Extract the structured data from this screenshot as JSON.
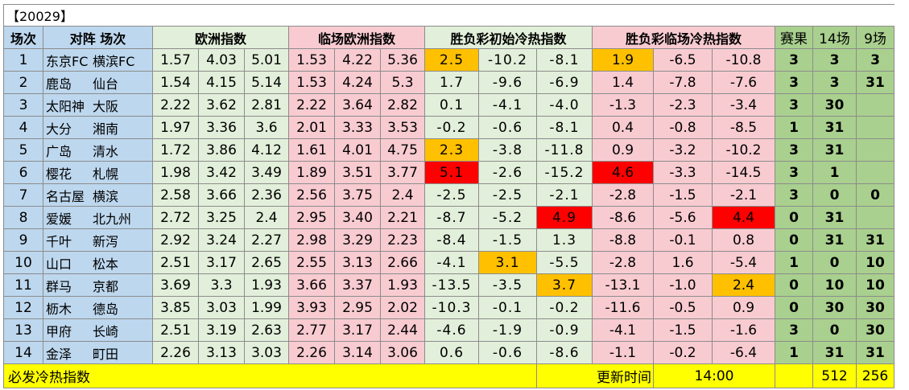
{
  "title": "【20029】",
  "headers": {
    "round": "场次",
    "match": "对阵 场次",
    "euro": "欧洲指数",
    "live_euro": "临场欧洲指数",
    "initial_heat": "胜负彩初始冷热指数",
    "live_heat": "胜负彩临场冷热指数",
    "result": "赛果",
    "g14": "14场",
    "g9": "9场"
  },
  "rows": [
    {
      "n": "1",
      "home": "东京FC",
      "away": "横滨FC",
      "euro": [
        "1.57",
        "4.03",
        "5.01"
      ],
      "live": [
        "1.53",
        "4.22",
        "5.36"
      ],
      "init": [
        "2.5",
        "-10.2",
        "-8.1"
      ],
      "heat": [
        "1.9",
        "-6.5",
        "-10.8"
      ],
      "result": "3",
      "g14": "3",
      "g9": "3"
    },
    {
      "n": "2",
      "home": "鹿岛",
      "away": "仙台",
      "euro": [
        "1.54",
        "4.15",
        "5.14"
      ],
      "live": [
        "1.53",
        "4.24",
        "5.3"
      ],
      "init": [
        "1.7",
        "-9.6",
        "-6.9"
      ],
      "heat": [
        "1.4",
        "-7.8",
        "-7.6"
      ],
      "result": "3",
      "g14": "3",
      "g9": "31"
    },
    {
      "n": "3",
      "home": "太阳神",
      "away": "大阪",
      "euro": [
        "2.22",
        "3.62",
        "2.81"
      ],
      "live": [
        "2.22",
        "3.64",
        "2.82"
      ],
      "init": [
        "0.1",
        "-4.1",
        "-4.0"
      ],
      "heat": [
        "-1.3",
        "-2.3",
        "-3.4"
      ],
      "result": "3",
      "g14": "30",
      "g9": ""
    },
    {
      "n": "4",
      "home": "大分",
      "away": "湘南",
      "euro": [
        "1.97",
        "3.36",
        "3.6"
      ],
      "live": [
        "2.01",
        "3.33",
        "3.53"
      ],
      "init": [
        "-0.2",
        "-0.6",
        "-8.1"
      ],
      "heat": [
        "0.4",
        "-0.8",
        "-8.5"
      ],
      "result": "1",
      "g14": "31",
      "g9": ""
    },
    {
      "n": "5",
      "home": "广岛",
      "away": "清水",
      "euro": [
        "1.72",
        "3.86",
        "4.12"
      ],
      "live": [
        "1.61",
        "4.01",
        "4.75"
      ],
      "init": [
        "2.3",
        "-3.8",
        "-11.8"
      ],
      "heat": [
        "0.9",
        "-3.2",
        "-10.2"
      ],
      "result": "3",
      "g14": "31",
      "g9": ""
    },
    {
      "n": "6",
      "home": "樱花",
      "away": "札幌",
      "euro": [
        "1.98",
        "3.42",
        "3.49"
      ],
      "live": [
        "1.89",
        "3.51",
        "3.77"
      ],
      "init": [
        "5.1",
        "-2.6",
        "-15.2"
      ],
      "heat": [
        "4.6",
        "-3.3",
        "-14.5"
      ],
      "result": "3",
      "g14": "1",
      "g9": ""
    },
    {
      "n": "7",
      "home": "名古屋",
      "away": "横滨",
      "euro": [
        "2.58",
        "3.66",
        "2.36"
      ],
      "live": [
        "2.56",
        "3.75",
        "2.4"
      ],
      "init": [
        "-2.5",
        "-2.5",
        "-2.1"
      ],
      "heat": [
        "-2.8",
        "-1.5",
        "-2.1"
      ],
      "result": "3",
      "g14": "0",
      "g9": "0"
    },
    {
      "n": "8",
      "home": "爱媛",
      "away": "北九州",
      "euro": [
        "2.72",
        "3.25",
        "2.4"
      ],
      "live": [
        "2.95",
        "3.40",
        "2.21"
      ],
      "init": [
        "-8.7",
        "-5.2",
        "4.9"
      ],
      "heat": [
        "-8.6",
        "-5.6",
        "4.4"
      ],
      "result": "0",
      "g14": "31",
      "g9": ""
    },
    {
      "n": "9",
      "home": "千叶",
      "away": "新泻",
      "euro": [
        "2.92",
        "3.24",
        "2.27"
      ],
      "live": [
        "2.98",
        "3.29",
        "2.23"
      ],
      "init": [
        "-8.4",
        "-1.5",
        "1.3"
      ],
      "heat": [
        "-8.8",
        "-0.1",
        "0.8"
      ],
      "result": "0",
      "g14": "31",
      "g9": "31"
    },
    {
      "n": "10",
      "home": "山口",
      "away": "松本",
      "euro": [
        "2.51",
        "3.17",
        "2.65"
      ],
      "live": [
        "2.55",
        "3.13",
        "2.66"
      ],
      "init": [
        "-4.1",
        "3.1",
        "-5.5"
      ],
      "heat": [
        "-2.8",
        "1.6",
        "-5.4"
      ],
      "result": "1",
      "g14": "0",
      "g9": "10"
    },
    {
      "n": "11",
      "home": "群马",
      "away": "京都",
      "euro": [
        "3.69",
        "3.3",
        "1.93"
      ],
      "live": [
        "3.66",
        "3.37",
        "1.93"
      ],
      "init": [
        "-13.5",
        "-3.5",
        "3.7"
      ],
      "heat": [
        "-13.1",
        "-1.0",
        "2.4"
      ],
      "result": "0",
      "g14": "10",
      "g9": "10"
    },
    {
      "n": "12",
      "home": "枥木",
      "away": "德岛",
      "euro": [
        "3.85",
        "3.03",
        "1.99"
      ],
      "live": [
        "3.93",
        "2.95",
        "2.02"
      ],
      "init": [
        "-10.3",
        "-0.1",
        "-0.2"
      ],
      "heat": [
        "-11.6",
        "-0.5",
        "0.9"
      ],
      "result": "0",
      "g14": "30",
      "g9": "30"
    },
    {
      "n": "13",
      "home": "甲府",
      "away": "长崎",
      "euro": [
        "2.51",
        "3.19",
        "2.63"
      ],
      "live": [
        "2.77",
        "3.17",
        "2.44"
      ],
      "init": [
        "-4.6",
        "-1.9",
        "-0.9"
      ],
      "heat": [
        "-4.1",
        "-1.5",
        "-1.6"
      ],
      "result": "3",
      "g14": "0",
      "g9": "30"
    },
    {
      "n": "14",
      "home": "金泽",
      "away": "町田",
      "euro": [
        "2.26",
        "3.13",
        "3.03"
      ],
      "live": [
        "2.26",
        "3.14",
        "3.06"
      ],
      "init": [
        "0.6",
        "-0.6",
        "-8.6"
      ],
      "heat": [
        "-1.1",
        "-0.2",
        "-6.4"
      ],
      "result": "1",
      "g14": "31",
      "g9": "31"
    }
  ],
  "highlights": {
    "init": {
      "0": [
        "orange",
        null,
        null
      ],
      "4": [
        "orange",
        null,
        null
      ],
      "5": [
        "red",
        null,
        null
      ],
      "7": [
        null,
        null,
        "red"
      ],
      "9": [
        null,
        "orange",
        null
      ],
      "10": [
        null,
        null,
        "orange"
      ]
    },
    "heat": {
      "0": [
        "orange",
        null,
        null
      ],
      "5": [
        "red",
        null,
        null
      ],
      "7": [
        null,
        null,
        "red"
      ],
      "10": [
        null,
        null,
        "orange"
      ]
    }
  },
  "footer": {
    "label": "必发冷热指数",
    "update_label": "更新时间",
    "time": "14:00",
    "count14": "512",
    "count9": "256"
  },
  "colors": {
    "orange": "#ffc000",
    "red": "#ff0000",
    "blue": "#bdd7ee",
    "green": "#e2efda",
    "pink": "#f8cbd1",
    "green2": "#a9d08e",
    "yellow": "#ffff00"
  }
}
